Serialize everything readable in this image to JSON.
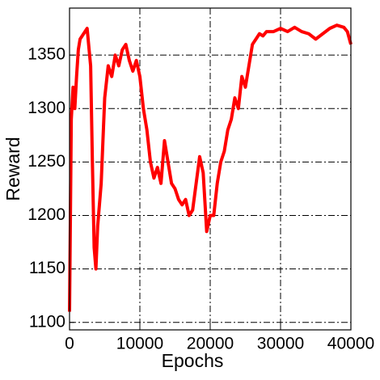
{
  "chart_data": {
    "type": "line",
    "xlabel": "Epochs",
    "ylabel": "Reward",
    "x": [
      0,
      250,
      500,
      750,
      1000,
      1250,
      1500,
      2000,
      2500,
      3000,
      3250,
      3500,
      3750,
      4000,
      4500,
      5000,
      5500,
      6000,
      6500,
      7000,
      7500,
      8000,
      8500,
      9000,
      9500,
      10000,
      10500,
      11000,
      11500,
      12000,
      12500,
      13000,
      13500,
      14000,
      14500,
      15000,
      15500,
      16000,
      16500,
      17000,
      17500,
      18000,
      18500,
      19000,
      19500,
      20000,
      20500,
      21000,
      21500,
      22000,
      22500,
      23000,
      23500,
      24000,
      24500,
      25000,
      25500,
      26000,
      26500,
      27000,
      27500,
      28000,
      29000,
      30000,
      31000,
      32000,
      33000,
      34000,
      35000,
      36000,
      37000,
      38000,
      39000,
      39500,
      40000
    ],
    "series": [
      {
        "name": "Reward",
        "color": "#ff0000",
        "values": [
          1110,
          1290,
          1320,
          1300,
          1330,
          1355,
          1365,
          1370,
          1375,
          1340,
          1250,
          1170,
          1150,
          1190,
          1230,
          1310,
          1340,
          1330,
          1350,
          1340,
          1355,
          1360,
          1345,
          1335,
          1345,
          1330,
          1300,
          1280,
          1250,
          1235,
          1245,
          1230,
          1270,
          1250,
          1230,
          1225,
          1215,
          1210,
          1215,
          1200,
          1205,
          1230,
          1255,
          1240,
          1185,
          1200,
          1200,
          1230,
          1250,
          1260,
          1280,
          1290,
          1310,
          1300,
          1330,
          1320,
          1340,
          1360,
          1365,
          1370,
          1368,
          1372,
          1372,
          1375,
          1372,
          1376,
          1372,
          1370,
          1365,
          1370,
          1375,
          1378,
          1376,
          1372,
          1360
        ]
      }
    ],
    "xlim": [
      0,
      40000
    ],
    "ylim": [
      1093,
      1394
    ],
    "xticks": [
      0,
      10000,
      20000,
      30000,
      40000
    ],
    "yticks": [
      1100,
      1150,
      1200,
      1250,
      1300,
      1350
    ],
    "grid": true
  }
}
